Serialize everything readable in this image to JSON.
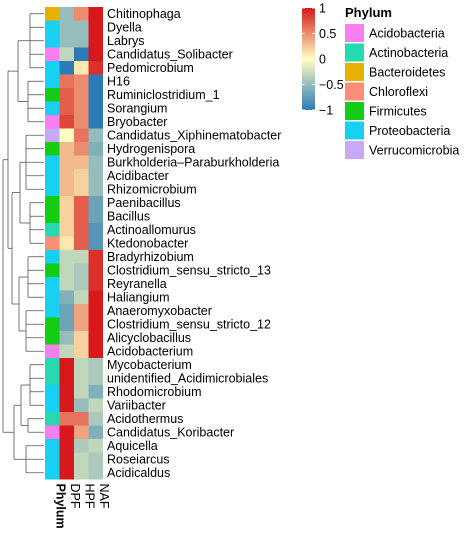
{
  "chart_data": {
    "type": "heatmap",
    "columns": [
      "Phylum",
      "DPF",
      "HPF",
      "NAF"
    ],
    "rows": [
      {
        "genus": "Chitinophaga",
        "phylum": "Bacteroidetes",
        "values": [
          -0.5,
          0.5,
          1.0
        ]
      },
      {
        "genus": "Dyella",
        "phylum": "Proteobacteria",
        "values": [
          -0.5,
          -0.5,
          1.0
        ]
      },
      {
        "genus": "Labrys",
        "phylum": "Proteobacteria",
        "values": [
          -0.5,
          -0.5,
          1.0
        ]
      },
      {
        "genus": "Candidatus_Solibacter",
        "phylum": "Acidobacteria",
        "values": [
          -0.3,
          -1.0,
          1.0
        ]
      },
      {
        "genus": "Pedomicrobium",
        "phylum": "Proteobacteria",
        "values": [
          -1.0,
          0.1,
          0.9
        ]
      },
      {
        "genus": "H16",
        "phylum": "Proteobacteria",
        "values": [
          0.6,
          0.5,
          -1.0
        ]
      },
      {
        "genus": "Ruminiclostridium_1",
        "phylum": "Firmicutes",
        "values": [
          0.7,
          0.5,
          -1.0
        ]
      },
      {
        "genus": "Sorangium",
        "phylum": "Proteobacteria",
        "values": [
          0.7,
          0.5,
          -1.0
        ]
      },
      {
        "genus": "Bryobacter",
        "phylum": "Acidobacteria",
        "values": [
          0.8,
          0.5,
          -1.0
        ]
      },
      {
        "genus": "Candidatus_Xiphinematobacter",
        "phylum": "Verrucomicrobia",
        "values": [
          0.0,
          0.6,
          -0.5
        ]
      },
      {
        "genus": "Hydrogenispora",
        "phylum": "Firmicutes",
        "values": [
          0.3,
          0.5,
          -0.6
        ]
      },
      {
        "genus": "Burkholderia–Paraburkholderia",
        "phylum": "Proteobacteria",
        "values": [
          0.3,
          0.3,
          -0.5
        ]
      },
      {
        "genus": "Acidibacter",
        "phylum": "Proteobacteria",
        "values": [
          0.3,
          0.2,
          -0.5
        ]
      },
      {
        "genus": "Rhizomicrobium",
        "phylum": "Proteobacteria",
        "values": [
          0.3,
          0.2,
          -0.5
        ]
      },
      {
        "genus": "Paenibacillus",
        "phylum": "Firmicutes",
        "values": [
          0.2,
          0.7,
          -0.7
        ]
      },
      {
        "genus": "Bacillus",
        "phylum": "Firmicutes",
        "values": [
          0.2,
          0.7,
          -0.7
        ]
      },
      {
        "genus": "Actinoallomurus",
        "phylum": "Actinobacteria",
        "values": [
          0.2,
          0.7,
          -0.8
        ]
      },
      {
        "genus": "Ktedonobacter",
        "phylum": "Chloroflexi",
        "values": [
          0.1,
          0.7,
          -0.8
        ]
      },
      {
        "genus": "Bradyrhizobium",
        "phylum": "Proteobacteria",
        "values": [
          -0.3,
          -0.3,
          0.9
        ]
      },
      {
        "genus": "Clostridium_sensu_stricto_13",
        "phylum": "Firmicutes",
        "values": [
          -0.3,
          -0.4,
          0.9
        ]
      },
      {
        "genus": "Reyranella",
        "phylum": "Proteobacteria",
        "values": [
          -0.3,
          -0.4,
          0.9
        ]
      },
      {
        "genus": "Haliangium",
        "phylum": "Proteobacteria",
        "values": [
          -0.6,
          -0.3,
          1.0
        ]
      },
      {
        "genus": "Anaeromyxobacter",
        "phylum": "Proteobacteria",
        "values": [
          -0.7,
          0.4,
          1.0
        ]
      },
      {
        "genus": "Clostridium_sensu_stricto_12",
        "phylum": "Firmicutes",
        "values": [
          -0.7,
          0.4,
          1.0
        ]
      },
      {
        "genus": "Alicyclobacillus",
        "phylum": "Firmicutes",
        "values": [
          -0.5,
          0.2,
          1.0
        ]
      },
      {
        "genus": "Acidobacterium",
        "phylum": "Acidobacteria",
        "values": [
          -0.3,
          0.2,
          1.0
        ]
      },
      {
        "genus": "Mycobacterium",
        "phylum": "Actinobacteria",
        "values": [
          1.0,
          -0.3,
          -0.4
        ]
      },
      {
        "genus": "unidentified_Acidimicrobiales",
        "phylum": "Actinobacteria",
        "values": [
          1.0,
          -0.3,
          -0.4
        ]
      },
      {
        "genus": "Rhodomicrobium",
        "phylum": "Proteobacteria",
        "values": [
          1.0,
          -0.3,
          -0.6
        ]
      },
      {
        "genus": "Variibacter",
        "phylum": "Proteobacteria",
        "values": [
          1.0,
          -0.5,
          -0.3
        ]
      },
      {
        "genus": "Acidothermus",
        "phylum": "Actinobacteria",
        "values": [
          0.6,
          0.6,
          -0.4
        ]
      },
      {
        "genus": "Candidatus_Koribacter",
        "phylum": "Acidobacteria",
        "values": [
          1.0,
          0.4,
          -0.6
        ]
      },
      {
        "genus": "Aquicella",
        "phylum": "Proteobacteria",
        "values": [
          1.0,
          -0.4,
          -0.3
        ]
      },
      {
        "genus": "Roseiarcus",
        "phylum": "Proteobacteria",
        "values": [
          1.0,
          -0.3,
          -0.4
        ]
      },
      {
        "genus": "Acidicaldus",
        "phylum": "Proteobacteria",
        "values": [
          1.0,
          -0.3,
          -0.4
        ]
      }
    ],
    "colorbar": {
      "ticks": [
        1,
        0.5,
        0,
        -0.5,
        -1
      ],
      "min": -1,
      "max": 1,
      "colors": {
        "low": "#2c7bb6",
        "mid": "#ffffbf",
        "high": "#d7191c"
      }
    },
    "legend": {
      "title": "Phylum",
      "entries": [
        {
          "name": "Acidobacteria",
          "color": "#f77ff0"
        },
        {
          "name": "Actinobacteria",
          "color": "#27d9b0"
        },
        {
          "name": "Bacteroidetes",
          "color": "#e8b000"
        },
        {
          "name": "Chloroflexi",
          "color": "#fb8e78"
        },
        {
          "name": "Firmicutes",
          "color": "#14cc14"
        },
        {
          "name": "Proteobacteria",
          "color": "#17d0f2"
        },
        {
          "name": "Verrucomicrobia",
          "color": "#c9a8f5"
        }
      ]
    },
    "dendrogram": "row",
    "grid": false
  }
}
